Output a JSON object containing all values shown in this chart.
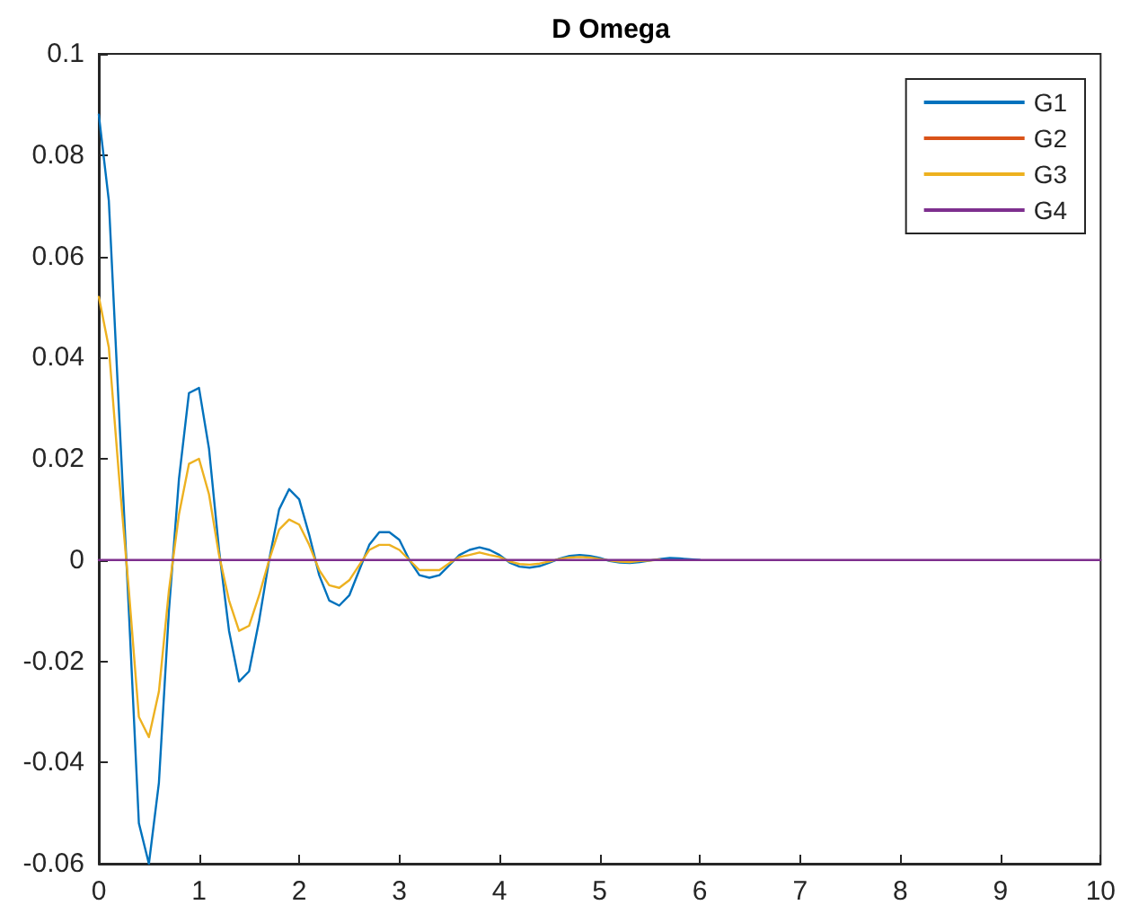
{
  "chart_data": {
    "type": "line",
    "title": "D Omega",
    "x": [
      0,
      0.1,
      0.2,
      0.3,
      0.4,
      0.5,
      0.6,
      0.7,
      0.8,
      0.9,
      1.0,
      1.1,
      1.2,
      1.3,
      1.4,
      1.5,
      1.6,
      1.7,
      1.8,
      1.9,
      2.0,
      2.1,
      2.2,
      2.3,
      2.4,
      2.5,
      2.6,
      2.7,
      2.8,
      2.9,
      3.0,
      3.1,
      3.2,
      3.3,
      3.4,
      3.5,
      3.6,
      3.7,
      3.8,
      3.9,
      4.0,
      4.1,
      4.2,
      4.3,
      4.4,
      4.5,
      4.6,
      4.7,
      4.8,
      4.9,
      5.0,
      5.1,
      5.2,
      5.3,
      5.4,
      5.5,
      5.6,
      5.7,
      5.8,
      6
    ],
    "series": [
      {
        "name": "G1",
        "color": "#0072bd",
        "values": [
          0.088,
          0.071,
          0.03,
          -0.01,
          -0.052,
          -0.06,
          -0.044,
          -0.01,
          0.016,
          0.033,
          0.034,
          0.022,
          0.002,
          -0.014,
          -0.024,
          -0.022,
          -0.012,
          0,
          0.01,
          0.014,
          0.012,
          0.005,
          -0.003,
          -0.008,
          -0.009,
          -0.007,
          -0.002,
          0.003,
          0.0055,
          0.0055,
          0.004,
          0,
          -0.003,
          -0.0035,
          -0.003,
          -0.001,
          0.001,
          0.002,
          0.0025,
          0.002,
          0.001,
          -0.0005,
          -0.0013,
          -0.0015,
          -0.0012,
          -0.0005,
          0.0003,
          0.0008,
          0.001,
          0.0008,
          0.0004,
          -0.0002,
          -0.0005,
          -0.0006,
          -0.0004,
          -0.0001,
          0.0002,
          0.0004,
          0.0003,
          0
        ]
      },
      {
        "name": "G2",
        "color": "#d95319",
        "values": [
          null,
          null,
          null,
          null,
          null,
          null,
          null,
          null,
          null,
          null,
          null,
          null,
          null,
          null,
          null,
          null,
          null,
          null,
          null,
          null,
          null,
          null,
          null,
          null,
          null,
          null,
          null,
          null,
          null,
          null,
          null,
          null,
          null,
          null,
          null,
          null,
          null,
          null,
          null,
          null,
          null,
          null,
          null,
          null,
          null,
          null,
          null,
          null,
          null,
          null,
          null,
          null,
          null,
          null,
          null,
          null,
          null,
          null,
          null,
          null
        ]
      },
      {
        "name": "G3",
        "color": "#edb120",
        "values": [
          0.052,
          0.042,
          0.017,
          -0.006,
          -0.031,
          -0.035,
          -0.026,
          -0.006,
          0.009,
          0.019,
          0.02,
          0.013,
          0.001,
          -0.008,
          -0.014,
          -0.013,
          -0.007,
          0,
          0.006,
          0.008,
          0.007,
          0.003,
          -0.002,
          -0.005,
          -0.0055,
          -0.004,
          -0.001,
          0.002,
          0.003,
          0.003,
          0.002,
          0,
          -0.002,
          -0.002,
          -0.002,
          -0.0006,
          0.0006,
          0.001,
          0.0015,
          0.001,
          0.0006,
          -0.0003,
          -0.0008,
          -0.0009,
          -0.0007,
          -0.0003,
          0.0002,
          0.0005,
          0.0006,
          0.0005,
          0.0002,
          -0.0001,
          -0.0003,
          -0.0004,
          -0.0002,
          -0.0001,
          0.0001,
          null,
          null,
          null
        ]
      },
      {
        "name": "G4",
        "color": "#7e2f8e",
        "x": [
          0,
          10
        ],
        "values": [
          0,
          0
        ]
      }
    ],
    "xlim": [
      0,
      10
    ],
    "xticks": [
      0,
      1,
      2,
      3,
      4,
      5,
      6,
      7,
      8,
      9,
      10
    ],
    "ylim": [
      -0.06,
      0.1
    ],
    "yticks": [
      -0.06,
      -0.04,
      -0.02,
      0,
      0.02,
      0.04,
      0.06,
      0.08,
      0.1
    ],
    "grid": false,
    "legend": "top right",
    "marker": "none",
    "line_style": "solid"
  }
}
